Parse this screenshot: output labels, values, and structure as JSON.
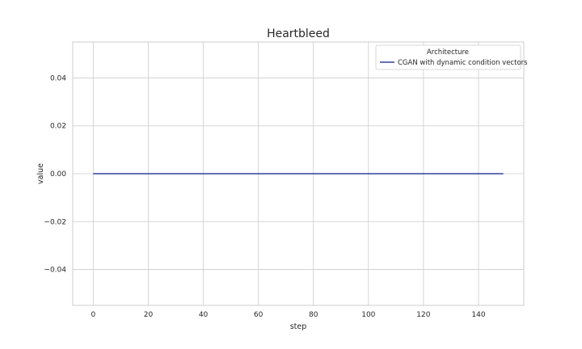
{
  "chart_data": {
    "type": "line",
    "title": "Heartbleed",
    "xlabel": "step",
    "ylabel": "value",
    "xlim": [
      -7.45,
      156.45
    ],
    "ylim": [
      -0.055,
      0.055
    ],
    "xticks": [
      0,
      20,
      40,
      60,
      80,
      100,
      120,
      140
    ],
    "yticks": [
      -0.04,
      -0.02,
      0.0,
      0.02,
      0.04
    ],
    "ytick_labels": [
      "−0.04",
      "−0.02",
      "0.00",
      "0.02",
      "0.04"
    ],
    "grid": true,
    "legend": {
      "title": "Architecture",
      "placement": "top-right"
    },
    "series": [
      {
        "name": "CGAN with dynamic condition vectors",
        "color": "#0a1a8c",
        "x_start": 0,
        "x_end": 149,
        "y_constant": 0.0
      }
    ]
  }
}
